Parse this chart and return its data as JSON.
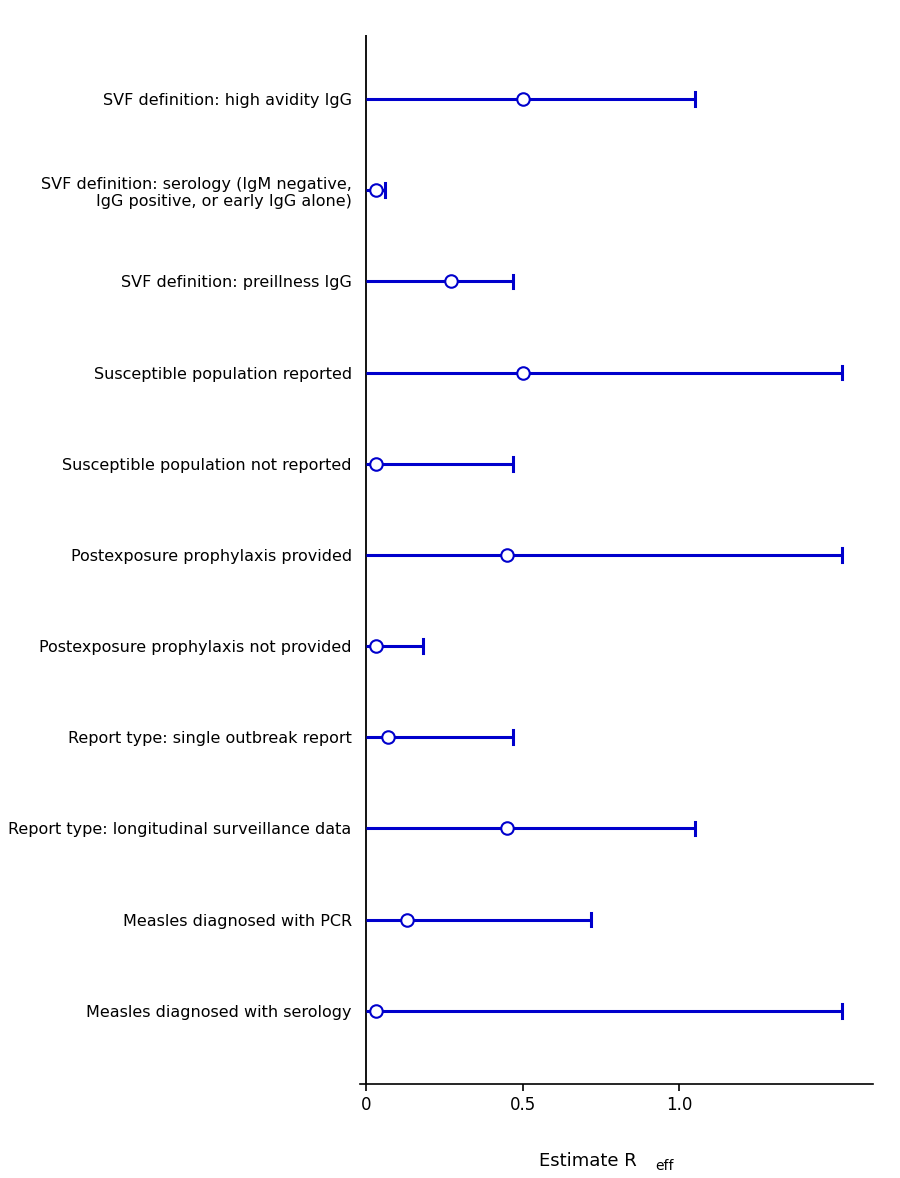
{
  "labels": [
    "SVF definition: high avidity IgG",
    "SVF definition: serology (IgM negative,\nIgG positive, or early IgG alone)",
    "SVF definition: preillness IgG",
    "Susceptible population reported",
    "Susceptible population not reported",
    "Postexposure prophylaxis provided",
    "Postexposure prophylaxis not provided",
    "Report type: single outbreak report",
    "Report type: longitudinal surveillance data",
    "Measles diagnosed with PCR",
    "Measles diagnosed with serology"
  ],
  "estimates": [
    0.5,
    0.03,
    0.27,
    0.5,
    0.03,
    0.45,
    0.03,
    0.07,
    0.45,
    0.13,
    0.03
  ],
  "ci_low": [
    0.0,
    0.0,
    0.0,
    0.0,
    0.0,
    0.0,
    0.0,
    0.0,
    0.0,
    0.0,
    0.0
  ],
  "ci_high": [
    1.05,
    0.06,
    0.47,
    1.52,
    0.47,
    1.52,
    0.18,
    0.47,
    1.05,
    0.72,
    1.52
  ],
  "line_color": "#0000cc",
  "marker_facecolor": "white",
  "marker_edgecolor": "#0000cc",
  "xlim": [
    -0.02,
    1.62
  ],
  "xticks": [
    0.0,
    0.5,
    1.0
  ],
  "xticklabels": [
    "0",
    "0.5",
    "1.0"
  ],
  "axis_color": "black",
  "background_color": "white",
  "label_fontsize": 11.5,
  "tick_fontsize": 12,
  "xlabel_fontsize": 13
}
